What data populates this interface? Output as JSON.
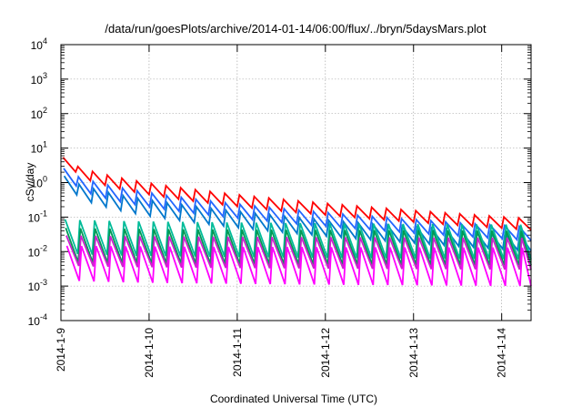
{
  "chart_data": {
    "type": "line",
    "title": "/data/run/goesPlots/archive/2014-01-14/06:00/flux/../bryn/5daysMars.plot",
    "xlabel": "Coordinated Universal Time (UTC)",
    "ylabel": "cSv/day",
    "y_scale": "log",
    "ylim": [
      0.0001,
      10000
    ],
    "xlim": [
      "2014-01-09 00:00",
      "2014-01-14 08:00"
    ],
    "grid": true,
    "x_ticks": [
      "2014-1-9",
      "2014-1-10",
      "2014-1-11",
      "2014-1-12",
      "2014-1-13",
      "2014-1-14"
    ],
    "y_ticks": [
      {
        "base": "10",
        "exp": "-4"
      },
      {
        "base": "10",
        "exp": "-3"
      },
      {
        "base": "10",
        "exp": "-2"
      },
      {
        "base": "10",
        "exp": "-1"
      },
      {
        "base": "10",
        "exp": "0"
      },
      {
        "base": "10",
        "exp": "1"
      },
      {
        "base": "10",
        "exp": "2"
      },
      {
        "base": "10",
        "exp": "3"
      },
      {
        "base": "10",
        "exp": "4"
      }
    ],
    "sawtooth_period_hours": 4,
    "series": [
      {
        "color": "#ff0000",
        "peak_start": 8.0,
        "trough_start": 3.0,
        "peak_end": 0.09,
        "trough_end": 0.04
      },
      {
        "color": "#2266ff",
        "peak_start": 4.0,
        "trough_start": 1.2,
        "peak_end": 0.05,
        "trough_end": 0.02
      },
      {
        "color": "#0077cc",
        "peak_start": 2.5,
        "trough_start": 0.7,
        "peak_end": 0.03,
        "trough_end": 0.01
      },
      {
        "color": "#00bb99",
        "peak_start": 0.09,
        "trough_start": 0.009,
        "peak_end": 0.06,
        "trough_end": 0.006
      },
      {
        "color": "#009955",
        "peak_start": 0.05,
        "trough_start": 0.005,
        "peak_end": 0.04,
        "trough_end": 0.004
      },
      {
        "color": "#cc22cc",
        "peak_start": 0.03,
        "trough_start": 0.004,
        "peak_end": 0.025,
        "trough_end": 0.003
      },
      {
        "color": "#ff00ff",
        "peak_start": 0.015,
        "trough_start": 0.0015,
        "peak_end": 0.013,
        "trough_end": 0.001
      }
    ]
  }
}
